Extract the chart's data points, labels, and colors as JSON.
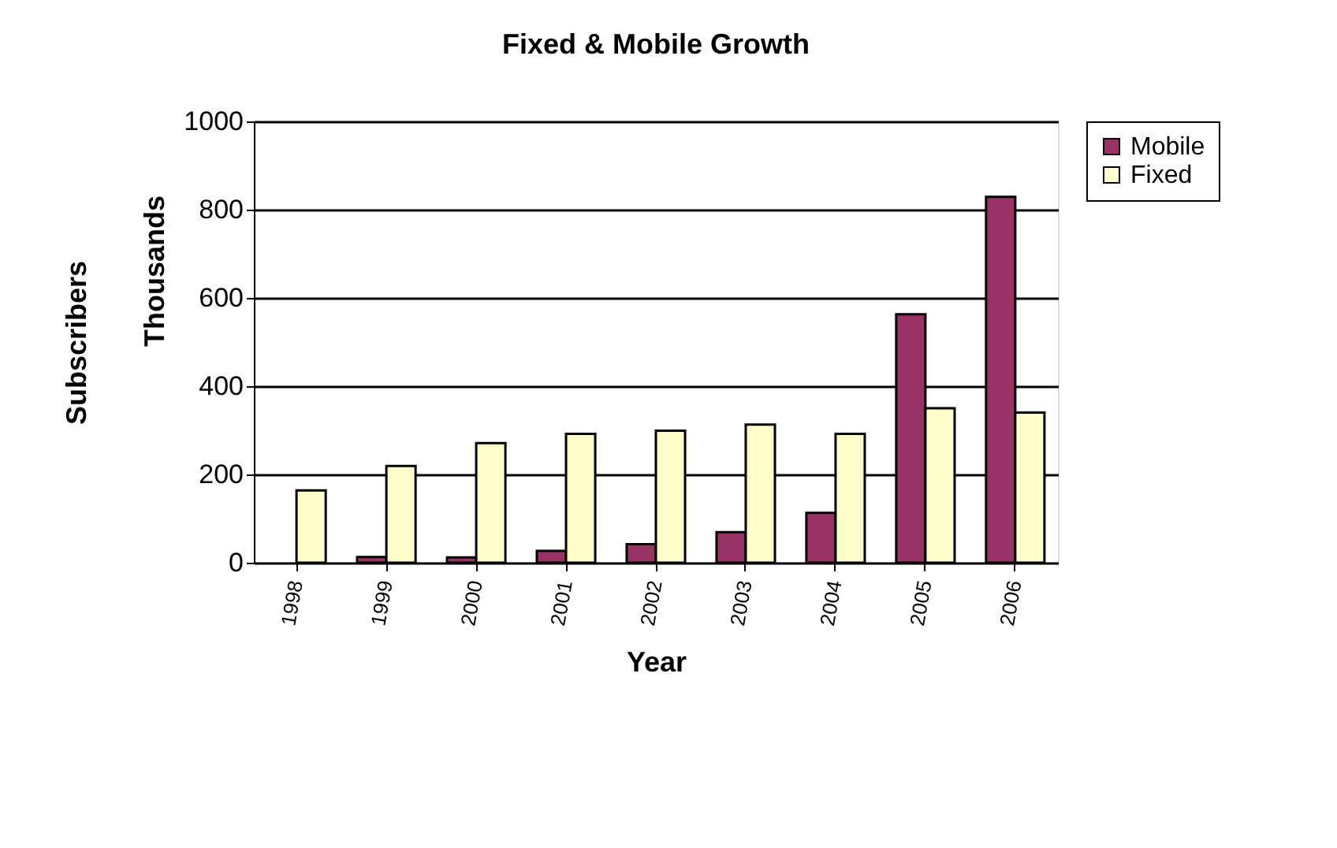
{
  "chart_data": {
    "type": "bar",
    "title": "Fixed & Mobile Growth",
    "xlabel": "Year",
    "ylabel": "Subscribers",
    "annotations": [
      "Thousands"
    ],
    "categories": [
      "1998",
      "1999",
      "2000",
      "2001",
      "2002",
      "2003",
      "2004",
      "2005",
      "2006"
    ],
    "series": [
      {
        "name": "Mobile",
        "color": "#993366",
        "values": [
          null,
          13,
          12,
          27,
          42,
          69,
          113,
          563,
          829
        ]
      },
      {
        "name": "Fixed",
        "color": "#ffffcc",
        "values": [
          164,
          219,
          271,
          292,
          299,
          313,
          292,
          350,
          340
        ]
      }
    ],
    "ylim": [
      0,
      1000
    ],
    "yticks": [
      0,
      200,
      400,
      600,
      800,
      1000
    ],
    "grid": "y",
    "legend": "right"
  }
}
